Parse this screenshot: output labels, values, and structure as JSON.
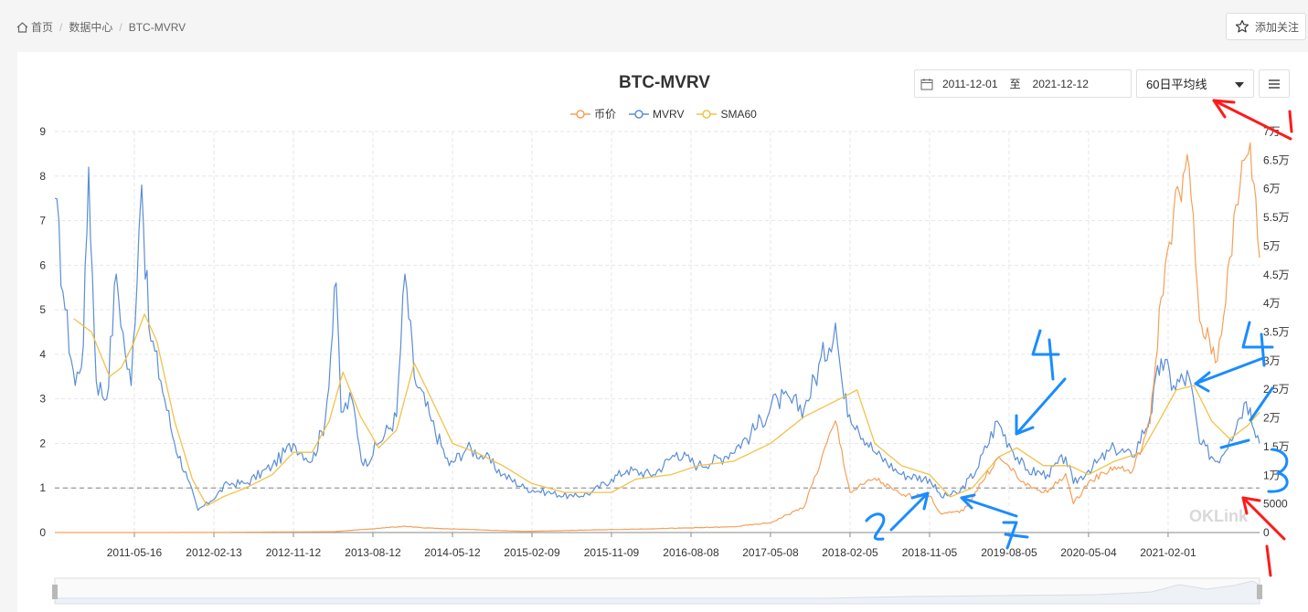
{
  "breadcrumb": {
    "home": "首页",
    "section": "数据中心",
    "current": "BTC-MVRV"
  },
  "follow_label": "添加关注",
  "chart_title": "BTC-MVRV",
  "date_range": {
    "start": "2011-12-01",
    "to_label": "至",
    "end": "2021-12-12"
  },
  "ma_select": {
    "selected": "60日平均线"
  },
  "watermark": "OKLink",
  "colors": {
    "price": "#f4a05a",
    "mvrv": "#5b8ed6",
    "sma60": "#f1c24a",
    "annotation_blue": "#1a8cff",
    "annotation_red": "#ff1a1a"
  },
  "chart_data": {
    "type": "line",
    "title": "BTC-MVRV",
    "legend": [
      "币价",
      "MVRV",
      "SMA60"
    ],
    "legend_position": "top-center",
    "grid": true,
    "x_ticks": [
      "2011-05-16",
      "2012-02-13",
      "2012-11-12",
      "2013-08-12",
      "2014-05-12",
      "2015-02-09",
      "2015-11-09",
      "2016-08-08",
      "2017-05-08",
      "2018-02-05",
      "2018-11-05",
      "2019-08-05",
      "2020-05-04",
      "2021-02-01"
    ],
    "y_left_ticks": [
      "0",
      "1",
      "2",
      "3",
      "4",
      "5",
      "6",
      "7",
      "8",
      "9"
    ],
    "y_left_range": [
      0,
      9
    ],
    "y_right_ticks": [
      "0",
      "5000",
      "1万",
      "1.5万",
      "2万",
      "2.5万",
      "3万",
      "3.5万",
      "4万",
      "4.5万",
      "5万",
      "5.5万",
      "6万",
      "6.5万",
      "7万"
    ],
    "y_right_range": [
      0,
      70000
    ],
    "reference_line": 1,
    "x_range": [
      "2010-08-16",
      "2021-12-12"
    ],
    "series": [
      {
        "name": "MVRV",
        "axis": "left",
        "points": [
          [
            "2010-08-16",
            7.5
          ],
          [
            "2010-09-20",
            5.0
          ],
          [
            "2010-10-25",
            3.3
          ],
          [
            "2010-11-22",
            4.2
          ],
          [
            "2010-12-10",
            8.2
          ],
          [
            "2011-01-05",
            3.4
          ],
          [
            "2011-02-10",
            3.0
          ],
          [
            "2011-03-15",
            5.8
          ],
          [
            "2011-04-15",
            4.0
          ],
          [
            "2011-05-05",
            3.3
          ],
          [
            "2011-06-01",
            6.8
          ],
          [
            "2011-06-10",
            7.8
          ],
          [
            "2011-07-05",
            4.6
          ],
          [
            "2011-08-15",
            3.4
          ],
          [
            "2011-10-01",
            2.0
          ],
          [
            "2011-11-15",
            1.2
          ],
          [
            "2011-12-20",
            0.5
          ],
          [
            "2012-02-01",
            0.7
          ],
          [
            "2012-04-01",
            1.1
          ],
          [
            "2012-06-01",
            1.1
          ],
          [
            "2012-09-01",
            1.5
          ],
          [
            "2012-11-12",
            2.0
          ],
          [
            "2013-01-15",
            1.6
          ],
          [
            "2013-03-01",
            2.5
          ],
          [
            "2013-04-08",
            5.6
          ],
          [
            "2013-04-25",
            2.7
          ],
          [
            "2013-06-01",
            3.0
          ],
          [
            "2013-07-10",
            1.5
          ],
          [
            "2013-09-01",
            2.0
          ],
          [
            "2013-11-01",
            2.6
          ],
          [
            "2013-11-30",
            5.8
          ],
          [
            "2014-01-01",
            3.5
          ],
          [
            "2014-03-01",
            2.5
          ],
          [
            "2014-05-01",
            1.5
          ],
          [
            "2014-07-01",
            1.9
          ],
          [
            "2014-09-01",
            1.7
          ],
          [
            "2014-11-01",
            1.3
          ],
          [
            "2015-01-15",
            1.0
          ],
          [
            "2015-04-01",
            0.9
          ],
          [
            "2015-07-01",
            0.8
          ],
          [
            "2015-09-01",
            0.9
          ],
          [
            "2015-11-09",
            1.2
          ],
          [
            "2016-01-01",
            1.4
          ],
          [
            "2016-04-01",
            1.3
          ],
          [
            "2016-06-20",
            1.8
          ],
          [
            "2016-09-01",
            1.5
          ],
          [
            "2016-12-01",
            1.7
          ],
          [
            "2017-03-01",
            2.2
          ],
          [
            "2017-06-01",
            3.0
          ],
          [
            "2017-09-01",
            2.8
          ],
          [
            "2017-12-17",
            4.7
          ],
          [
            "2018-01-15",
            3.0
          ],
          [
            "2018-03-01",
            2.4
          ],
          [
            "2018-05-01",
            1.8
          ],
          [
            "2018-08-01",
            1.3
          ],
          [
            "2018-11-05",
            1.2
          ],
          [
            "2018-12-15",
            0.8
          ],
          [
            "2019-02-15",
            0.9
          ],
          [
            "2019-04-15",
            1.4
          ],
          [
            "2019-06-26",
            2.5
          ],
          [
            "2019-08-05",
            2.0
          ],
          [
            "2019-10-01",
            1.4
          ],
          [
            "2019-12-15",
            1.3
          ],
          [
            "2020-02-15",
            1.7
          ],
          [
            "2020-03-13",
            1.1
          ],
          [
            "2020-05-04",
            1.4
          ],
          [
            "2020-08-01",
            1.9
          ],
          [
            "2020-10-01",
            1.7
          ],
          [
            "2020-12-01",
            2.6
          ],
          [
            "2021-01-08",
            3.9
          ],
          [
            "2021-02-20",
            3.3
          ],
          [
            "2021-04-14",
            3.5
          ],
          [
            "2021-05-20",
            2.0
          ],
          [
            "2021-07-20",
            1.6
          ],
          [
            "2021-09-01",
            2.1
          ],
          [
            "2021-10-20",
            2.9
          ],
          [
            "2021-11-10",
            2.8
          ],
          [
            "2021-12-12",
            2.0
          ]
        ]
      },
      {
        "name": "SMA60",
        "axis": "left",
        "points": [
          [
            "2010-10-20",
            4.8
          ],
          [
            "2010-12-20",
            4.5
          ],
          [
            "2011-02-20",
            3.5
          ],
          [
            "2011-04-01",
            3.7
          ],
          [
            "2011-05-10",
            4.2
          ],
          [
            "2011-06-20",
            4.9
          ],
          [
            "2011-08-01",
            4.3
          ],
          [
            "2011-10-01",
            2.5
          ],
          [
            "2011-12-01",
            1.2
          ],
          [
            "2012-01-20",
            0.6
          ],
          [
            "2012-03-15",
            0.8
          ],
          [
            "2012-06-01",
            1.0
          ],
          [
            "2012-09-01",
            1.3
          ],
          [
            "2012-11-12",
            1.8
          ],
          [
            "2013-01-15",
            1.8
          ],
          [
            "2013-03-15",
            2.5
          ],
          [
            "2013-05-01",
            3.6
          ],
          [
            "2013-07-01",
            2.6
          ],
          [
            "2013-09-01",
            1.9
          ],
          [
            "2013-11-01",
            2.3
          ],
          [
            "2014-01-01",
            3.8
          ],
          [
            "2014-03-01",
            3.0
          ],
          [
            "2014-05-12",
            2.0
          ],
          [
            "2014-08-01",
            1.8
          ],
          [
            "2014-11-01",
            1.5
          ],
          [
            "2015-02-09",
            1.1
          ],
          [
            "2015-06-01",
            0.9
          ],
          [
            "2015-11-09",
            0.9
          ],
          [
            "2016-02-01",
            1.2
          ],
          [
            "2016-06-01",
            1.3
          ],
          [
            "2016-09-01",
            1.5
          ],
          [
            "2017-01-01",
            1.6
          ],
          [
            "2017-05-08",
            2.0
          ],
          [
            "2017-09-01",
            2.6
          ],
          [
            "2018-01-01",
            3.0
          ],
          [
            "2018-03-01",
            3.2
          ],
          [
            "2018-05-01",
            2.0
          ],
          [
            "2018-08-01",
            1.5
          ],
          [
            "2018-11-05",
            1.3
          ],
          [
            "2019-01-15",
            0.8
          ],
          [
            "2019-04-01",
            1.0
          ],
          [
            "2019-07-01",
            1.7
          ],
          [
            "2019-09-01",
            1.9
          ],
          [
            "2019-12-01",
            1.5
          ],
          [
            "2020-03-01",
            1.5
          ],
          [
            "2020-05-04",
            1.3
          ],
          [
            "2020-08-01",
            1.6
          ],
          [
            "2020-11-01",
            1.8
          ],
          [
            "2021-01-01",
            2.5
          ],
          [
            "2021-03-01",
            3.2
          ],
          [
            "2021-05-01",
            3.3
          ],
          [
            "2021-07-01",
            2.5
          ],
          [
            "2021-09-01",
            2.1
          ],
          [
            "2021-11-01",
            2.4
          ],
          [
            "2021-12-12",
            2.7
          ]
        ]
      },
      {
        "name": "币价",
        "axis": "right",
        "points": [
          [
            "2010-08-16",
            0
          ],
          [
            "2012-01-01",
            10
          ],
          [
            "2013-04-01",
            150
          ],
          [
            "2013-11-30",
            1100
          ],
          [
            "2014-02-01",
            800
          ],
          [
            "2015-01-15",
            200
          ],
          [
            "2016-06-20",
            750
          ],
          [
            "2017-01-01",
            1000
          ],
          [
            "2017-05-08",
            1700
          ],
          [
            "2017-09-01",
            4500
          ],
          [
            "2017-12-17",
            19500
          ],
          [
            "2018-02-05",
            7000
          ],
          [
            "2018-05-01",
            9500
          ],
          [
            "2018-08-01",
            6500
          ],
          [
            "2018-11-05",
            6400
          ],
          [
            "2018-12-15",
            3200
          ],
          [
            "2019-03-01",
            3800
          ],
          [
            "2019-06-26",
            13000
          ],
          [
            "2019-08-05",
            11500
          ],
          [
            "2019-10-01",
            8200
          ],
          [
            "2019-12-15",
            7000
          ],
          [
            "2020-02-15",
            10300
          ],
          [
            "2020-03-13",
            5000
          ],
          [
            "2020-05-04",
            8800
          ],
          [
            "2020-08-01",
            11500
          ],
          [
            "2020-10-01",
            10600
          ],
          [
            "2020-12-01",
            19000
          ],
          [
            "2021-01-08",
            41000
          ],
          [
            "2021-02-20",
            56000
          ],
          [
            "2021-04-14",
            64000
          ],
          [
            "2021-05-20",
            37000
          ],
          [
            "2021-07-20",
            30000
          ],
          [
            "2021-09-01",
            48000
          ],
          [
            "2021-10-20",
            65000
          ],
          [
            "2021-11-10",
            68000
          ],
          [
            "2021-12-12",
            48000
          ]
        ]
      }
    ]
  }
}
